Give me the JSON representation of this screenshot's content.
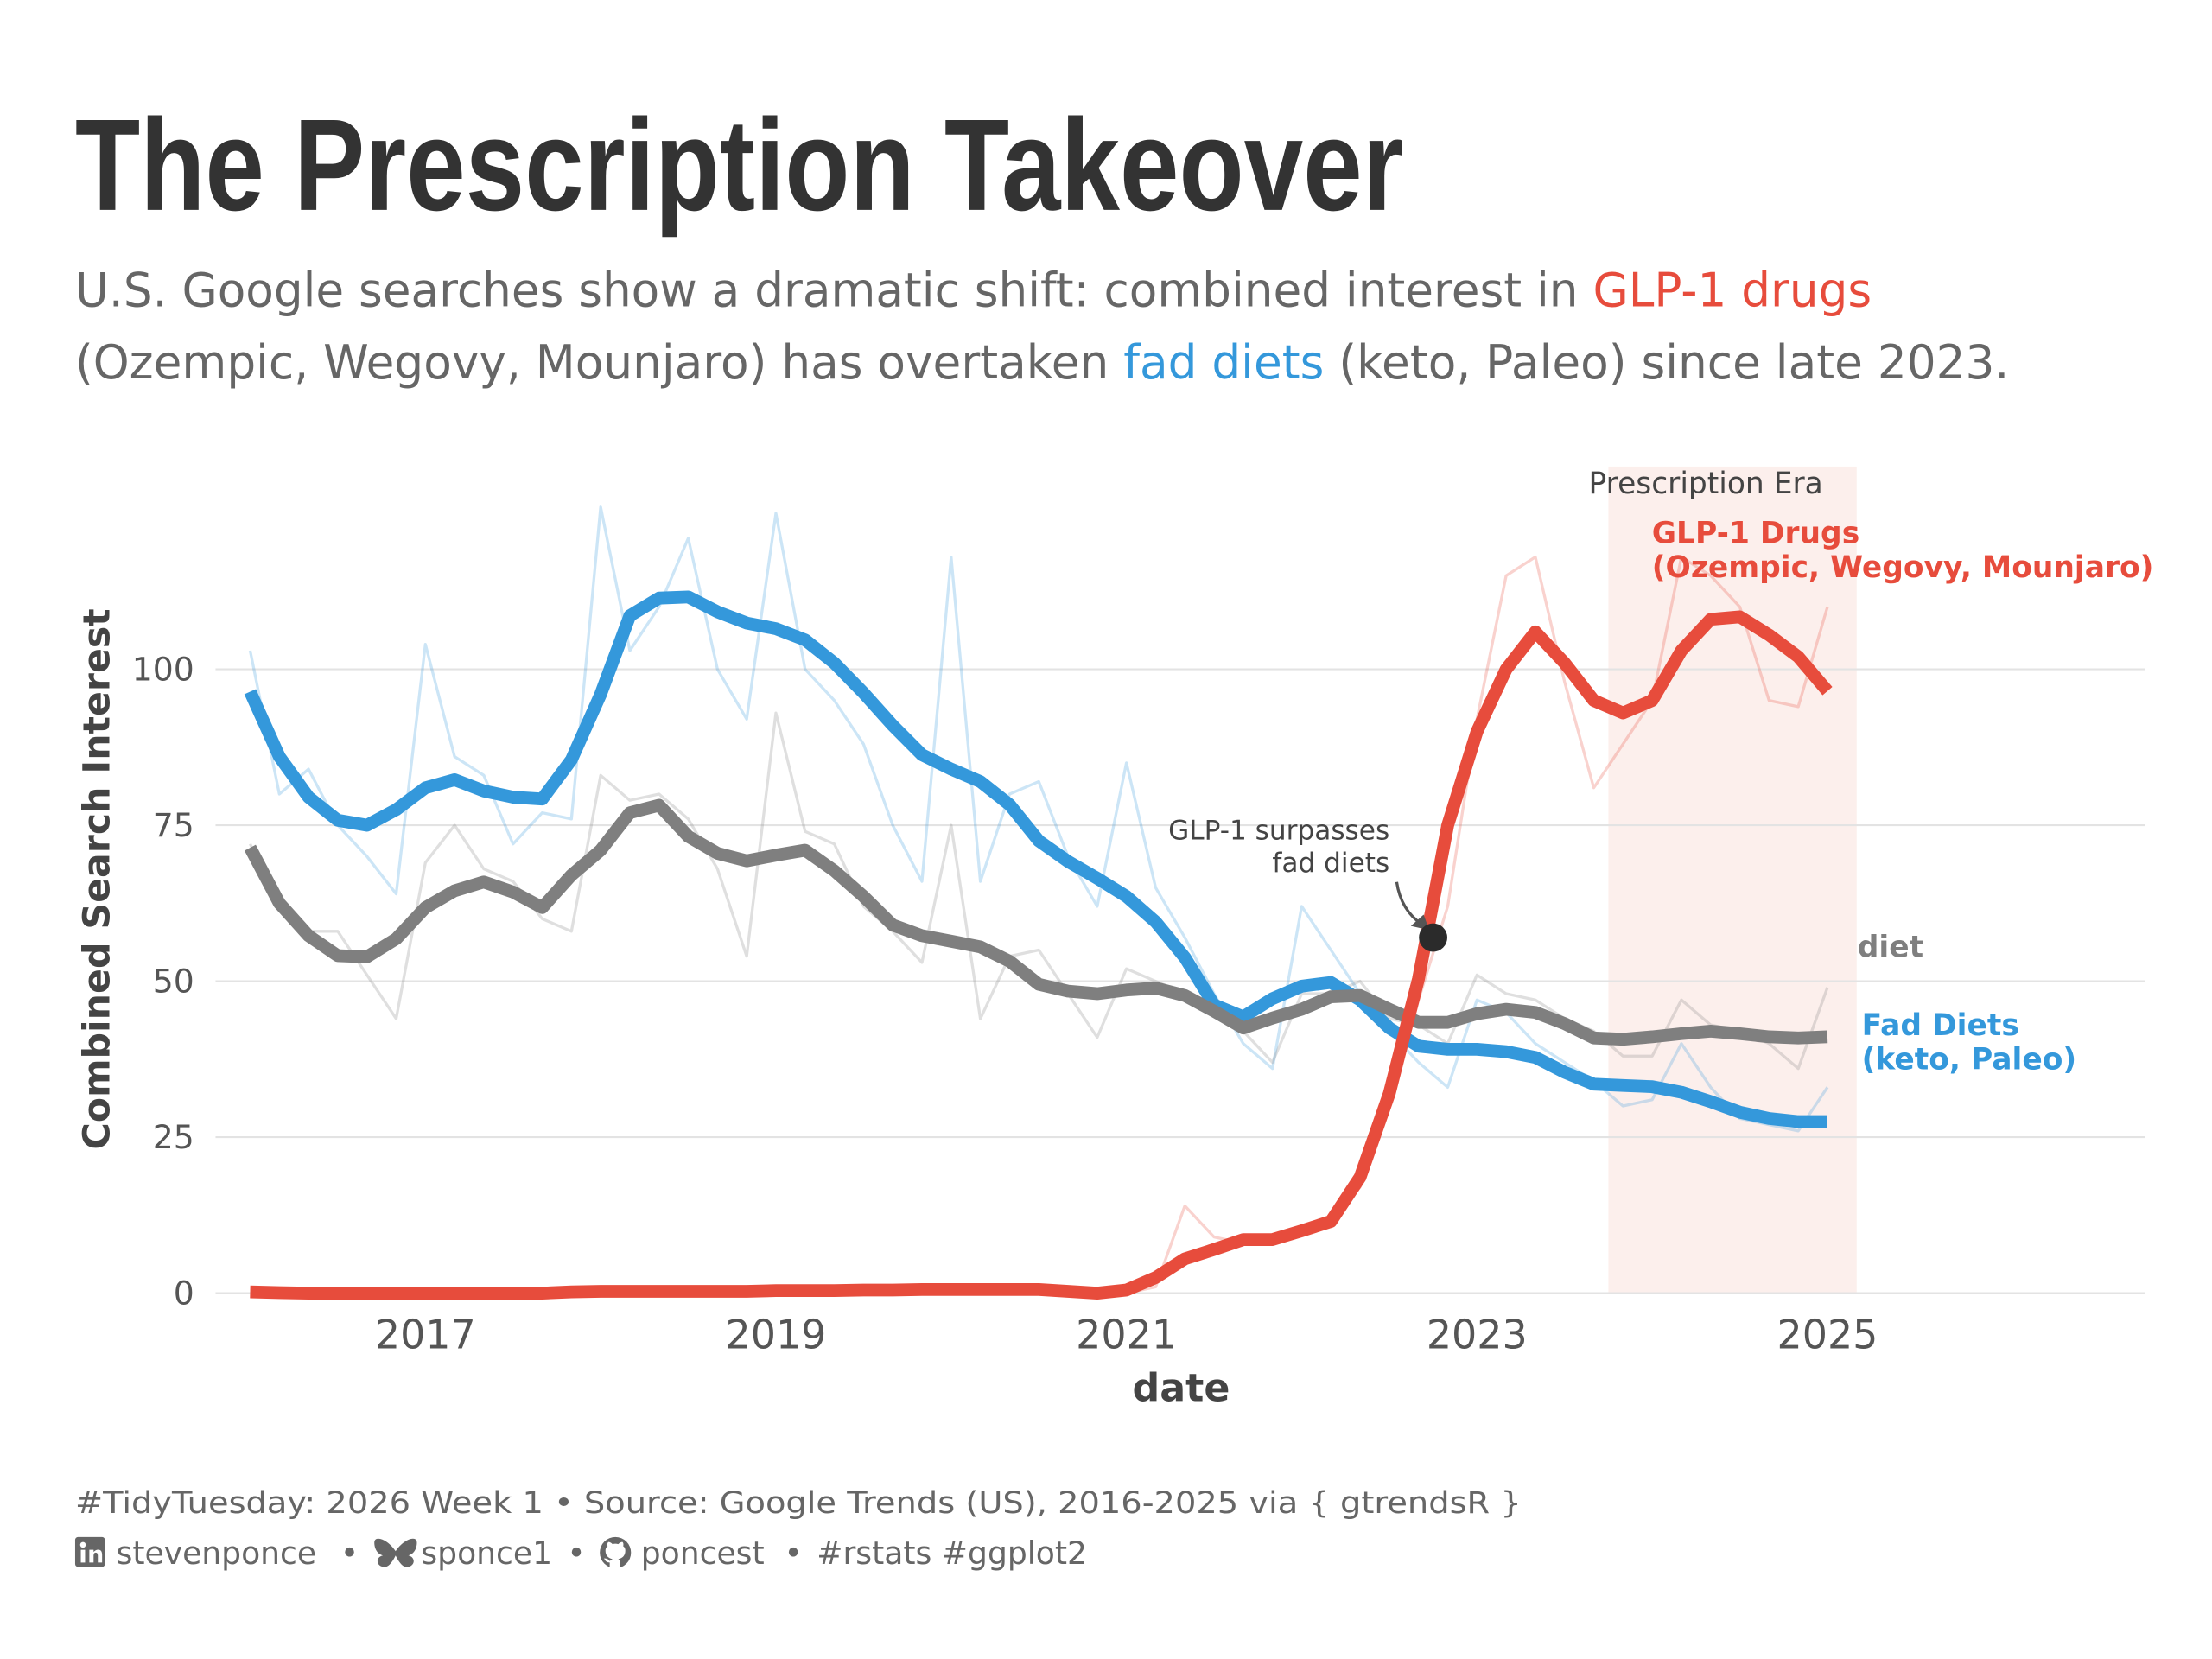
{
  "title": "The Prescription Takeover",
  "subtitle": {
    "line1_text": "U.S. Google searches show a dramatic shift: combined interest in ",
    "line1_highlight": "GLP-1 drugs",
    "line2_start": "(Ozempic, Wegovy, Mounjaro) has overtaken ",
    "line2_highlight": "fad diets",
    "line2_end": " (keto, Paleo) since late 2023."
  },
  "caption": {
    "line1": "#TidyTuesday: 2026 Week 1 • Source: Google Trends (US), 2016-2025 via { gtrendsR }",
    "linkedin": "stevenponce",
    "bluesky": "sponce1",
    "github": "poncest",
    "separator": "•",
    "tags": "#rstats #ggplot2",
    "icons": [
      "linkedin-icon",
      "butterfly-icon",
      "github-icon"
    ]
  },
  "colors": {
    "glp1": "#E74C3C",
    "fad": "#3498DB",
    "diet": "#7F7F7F",
    "era_shade": "#FCEFEC",
    "text": "#333333",
    "muted": "#666666"
  },
  "chart_data": {
    "type": "line",
    "xlabel": "date",
    "ylabel": "Combined Search Interest",
    "x_ticks": [
      "2017",
      "2019",
      "2021",
      "2023",
      "2025"
    ],
    "y_ticks": [
      "0",
      "25",
      "50",
      "75",
      "100"
    ],
    "xlim": [
      "2016-01",
      "2026-12"
    ],
    "ylim": [
      0,
      127
    ],
    "grid": "horizontal",
    "legend": "direct labels at right",
    "dates": [
      "2016-01",
      "2016-03",
      "2016-05",
      "2016-07",
      "2016-09",
      "2016-11",
      "2017-01",
      "2017-03",
      "2017-05",
      "2017-07",
      "2017-09",
      "2017-11",
      "2018-01",
      "2018-03",
      "2018-05",
      "2018-07",
      "2018-09",
      "2018-11",
      "2019-01",
      "2019-03",
      "2019-05",
      "2019-07",
      "2019-09",
      "2019-11",
      "2020-01",
      "2020-03",
      "2020-05",
      "2020-07",
      "2020-09",
      "2020-11",
      "2021-01",
      "2021-03",
      "2021-05",
      "2021-07",
      "2021-09",
      "2021-11",
      "2022-01",
      "2022-03",
      "2022-05",
      "2022-07",
      "2022-09",
      "2022-11",
      "2023-01",
      "2023-03",
      "2023-05",
      "2023-07",
      "2023-09",
      "2023-11",
      "2024-01",
      "2024-03",
      "2024-05",
      "2024-07",
      "2024-09",
      "2024-11",
      "2025-01"
    ],
    "series": [
      {
        "key": "fad",
        "label_line1": "Fad Diets",
        "label_line2": "(keto, Paleo)",
        "raw": [
          103,
          80,
          84,
          75,
          70,
          64,
          104,
          86,
          83,
          72,
          77,
          76,
          126,
          103,
          110,
          121,
          100,
          92,
          125,
          100,
          95,
          88,
          75,
          66,
          118,
          66,
          80,
          82,
          70,
          62,
          85,
          65,
          57,
          48,
          40,
          36,
          62,
          55,
          48,
          42,
          37,
          33,
          47,
          45,
          40,
          37,
          34,
          30,
          31,
          40,
          33,
          28,
          27,
          26,
          33
        ],
        "smoothed": [
          96.4,
          86,
          79.5,
          75.8,
          75,
          77.5,
          81,
          82.3,
          80.5,
          79.5,
          79.2,
          85.5,
          96,
          108.6,
          111.4,
          111.6,
          109.2,
          107.4,
          106.5,
          104.7,
          101,
          96.2,
          91,
          86.3,
          84,
          82,
          78.3,
          72.5,
          69.2,
          66.5,
          63.6,
          59.5,
          53.8,
          46.2,
          44.3,
          47.2,
          49.2,
          49.8,
          47,
          42.5,
          39.6,
          39.1,
          39.1,
          38.7,
          37.8,
          35.4,
          33.5,
          33.3,
          33.1,
          32.2,
          30.7,
          29,
          28,
          27.5,
          27.5
        ]
      },
      {
        "key": "diet",
        "label_line1": "diet",
        "label_line2": "",
        "raw": [
          72,
          62,
          58,
          58,
          51,
          44,
          69,
          75,
          68,
          66,
          60,
          58,
          83,
          79,
          80,
          76,
          68,
          54,
          93,
          74,
          72,
          62,
          58,
          53,
          75,
          44,
          54,
          55,
          48,
          41,
          52,
          50,
          48,
          45,
          42,
          37,
          48,
          48,
          50,
          44,
          43,
          40,
          51,
          48,
          47,
          44,
          42,
          38,
          38,
          47,
          43,
          42,
          40,
          36,
          49
        ],
        "smoothed": [
          71.4,
          62.5,
          57.3,
          54.1,
          53.9,
          56.8,
          61.8,
          64.5,
          65.9,
          64.3,
          61.8,
          67,
          71,
          77,
          78.2,
          73.2,
          70.5,
          69.3,
          70.2,
          71,
          67.7,
          63.6,
          59,
          57.3,
          56.4,
          55.5,
          53.2,
          49.5,
          48.4,
          48,
          48.6,
          48.9,
          47.7,
          45.2,
          42.5,
          44.1,
          45.5,
          47.5,
          47.7,
          45.5,
          43.4,
          43.4,
          44.8,
          45.5,
          45,
          43.2,
          40.9,
          40.7,
          41.1,
          41.6,
          42,
          41.6,
          41.1,
          40.9,
          41.1
        ]
      },
      {
        "key": "glp1",
        "label_line1": "GLP-1 Drugs",
        "label_line2": "(Ozempic, Wegovy, Mounjaro)",
        "raw": [
          0,
          0,
          0,
          0,
          0,
          0,
          0,
          0,
          0,
          0,
          0,
          0,
          0,
          0,
          0,
          0,
          0,
          0,
          0,
          0,
          0,
          0,
          0,
          0,
          0,
          0,
          0,
          0,
          0,
          0,
          0,
          1,
          14,
          9,
          8,
          8,
          10,
          12,
          17,
          30,
          47,
          62,
          92,
          115,
          118,
          98,
          81,
          88,
          95,
          118,
          115,
          110,
          95,
          94,
          110
        ],
        "smoothed": [
          0.2,
          0.1,
          0,
          0,
          0,
          0,
          0,
          0,
          0,
          0,
          0,
          0.2,
          0.3,
          0.3,
          0.3,
          0.3,
          0.3,
          0.3,
          0.4,
          0.4,
          0.4,
          0.5,
          0.5,
          0.6,
          0.6,
          0.6,
          0.6,
          0.6,
          0.3,
          0,
          0.5,
          2.5,
          5.5,
          7,
          8.6,
          8.6,
          10,
          11.5,
          18.6,
          32,
          50.4,
          75,
          90,
          100,
          106,
          101,
          95,
          93,
          95,
          103,
          108,
          108.4,
          105.5,
          102,
          96.5
        ]
      }
    ],
    "annotations": {
      "era_label": "Prescription Era",
      "era_start": "2023-10",
      "era_end": "2025-03",
      "crossover_text_line1": "GLP-1 surpasses",
      "crossover_text_line2": "fad diets",
      "crossover_date": "2022-10",
      "crossover_value": 57
    }
  }
}
